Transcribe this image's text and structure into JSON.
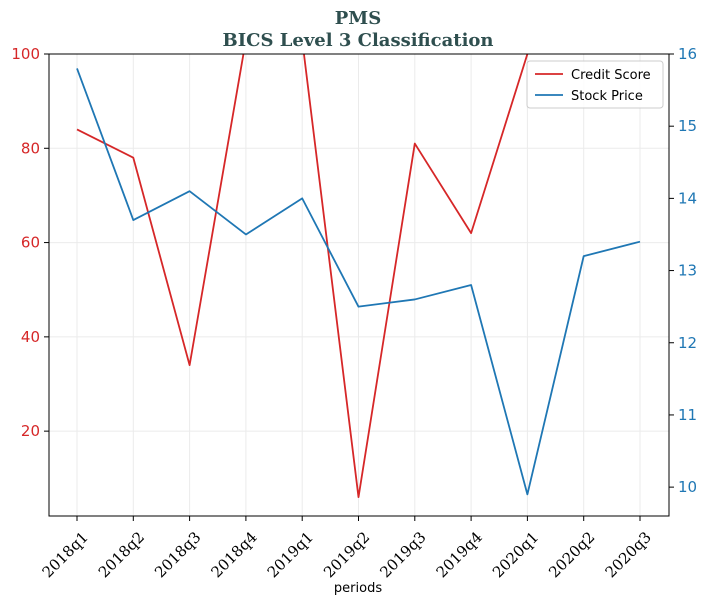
{
  "chart_data": {
    "type": "line",
    "title": "PMS",
    "subtitle": "BICS Level 3 Classification",
    "xlabel": "periods",
    "ylabel_left": "",
    "ylabel_right": "",
    "categories": [
      "2018q1",
      "2018q2",
      "2018q3",
      "2018q4",
      "2019q1",
      "2019q2",
      "2019q3",
      "2019q4",
      "2020q1",
      "2020q2",
      "2020q3"
    ],
    "ylim_left": [
      2,
      100
    ],
    "ylim_right": [
      9.6,
      16
    ],
    "yticks_left": [
      20,
      40,
      60,
      80,
      100
    ],
    "yticks_right": [
      10,
      11,
      12,
      13,
      14,
      15,
      16
    ],
    "grid": true,
    "legend_position": "top-right",
    "series": [
      {
        "name": "Credit Score",
        "axis": "left",
        "color": "#d62728",
        "values": [
          84,
          78,
          34,
          103,
          103,
          6,
          81,
          62,
          100,
          null,
          null
        ]
      },
      {
        "name": "Stock Price",
        "axis": "right",
        "color": "#1f77b4",
        "values": [
          15.8,
          13.7,
          14.1,
          13.5,
          14.0,
          12.5,
          12.6,
          12.8,
          9.9,
          13.2,
          13.4
        ]
      }
    ]
  }
}
